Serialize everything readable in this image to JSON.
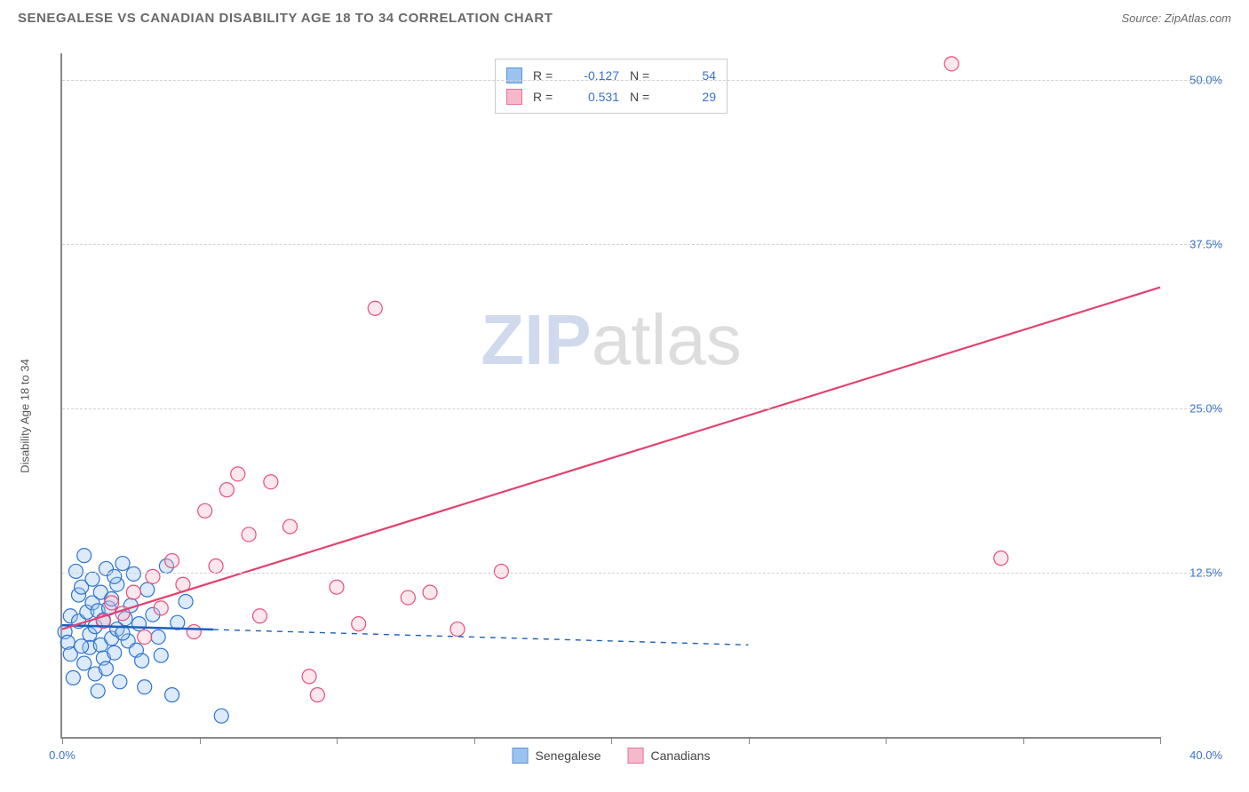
{
  "header": {
    "title": "SENEGALESE VS CANADIAN DISABILITY AGE 18 TO 34 CORRELATION CHART",
    "source": "Source: ZipAtlas.com"
  },
  "axes": {
    "y_label": "Disability Age 18 to 34",
    "xlim": [
      0,
      40
    ],
    "ylim": [
      0,
      52
    ],
    "x_ticks": [
      0,
      5,
      10,
      15,
      20,
      25,
      30,
      35,
      40
    ],
    "x_tick_labels": {
      "0": "0.0%"
    },
    "x_corner_label": "40.0%",
    "y_ticks": [
      12.5,
      25.0,
      37.5,
      50.0
    ],
    "y_tick_labels": [
      "12.5%",
      "25.0%",
      "37.5%",
      "50.0%"
    ],
    "grid_color": "#d0d0d0"
  },
  "series": {
    "senegalese": {
      "label": "Senegalese",
      "color_stroke": "#2f74d0",
      "color_fill": "#9cc2ef",
      "swatch_border": "#5a95da",
      "trend": {
        "slope": -0.06,
        "intercept": 8.5,
        "x_solid_end": 5.5,
        "x_dash_end": 25,
        "color": "#1c5fbf",
        "width": 2.5
      },
      "points": [
        [
          0.1,
          8.0
        ],
        [
          0.2,
          7.2
        ],
        [
          0.3,
          6.3
        ],
        [
          0.3,
          9.2
        ],
        [
          0.5,
          12.6
        ],
        [
          0.6,
          10.8
        ],
        [
          0.6,
          8.8
        ],
        [
          0.7,
          11.4
        ],
        [
          0.8,
          13.8
        ],
        [
          0.8,
          5.6
        ],
        [
          0.9,
          9.5
        ],
        [
          1.0,
          7.8
        ],
        [
          1.0,
          6.8
        ],
        [
          1.1,
          10.2
        ],
        [
          1.1,
          12.0
        ],
        [
          1.2,
          8.4
        ],
        [
          1.2,
          4.8
        ],
        [
          1.3,
          9.6
        ],
        [
          1.4,
          7.0
        ],
        [
          1.4,
          11.0
        ],
        [
          1.5,
          6.0
        ],
        [
          1.5,
          8.9
        ],
        [
          1.6,
          12.8
        ],
        [
          1.6,
          5.2
        ],
        [
          1.7,
          9.8
        ],
        [
          1.8,
          7.5
        ],
        [
          1.8,
          10.5
        ],
        [
          1.9,
          6.4
        ],
        [
          2.0,
          8.2
        ],
        [
          2.0,
          11.6
        ],
        [
          2.1,
          4.2
        ],
        [
          2.2,
          13.2
        ],
        [
          2.3,
          9.0
        ],
        [
          2.4,
          7.3
        ],
        [
          2.5,
          10.0
        ],
        [
          2.6,
          12.4
        ],
        [
          2.7,
          6.6
        ],
        [
          2.8,
          8.6
        ],
        [
          3.0,
          3.8
        ],
        [
          3.1,
          11.2
        ],
        [
          3.3,
          9.3
        ],
        [
          3.5,
          7.6
        ],
        [
          3.8,
          13.0
        ],
        [
          4.0,
          3.2
        ],
        [
          4.2,
          8.7
        ],
        [
          4.5,
          10.3
        ],
        [
          1.3,
          3.5
        ],
        [
          0.4,
          4.5
        ],
        [
          1.9,
          12.2
        ],
        [
          2.9,
          5.8
        ],
        [
          0.7,
          6.9
        ],
        [
          3.6,
          6.2
        ],
        [
          5.8,
          1.6
        ],
        [
          2.2,
          7.9
        ]
      ]
    },
    "canadians": {
      "label": "Canadians",
      "color_stroke": "#e84f7a",
      "color_fill": "#f6b9cb",
      "swatch_border": "#e87094",
      "trend": {
        "slope": 0.65,
        "intercept": 8.2,
        "x_solid_end": 40,
        "color": "#e3416e",
        "width": 2.2
      },
      "points": [
        [
          1.5,
          8.8
        ],
        [
          1.8,
          10.2
        ],
        [
          2.2,
          9.4
        ],
        [
          2.6,
          11.0
        ],
        [
          3.0,
          7.6
        ],
        [
          3.3,
          12.2
        ],
        [
          3.6,
          9.8
        ],
        [
          4.0,
          13.4
        ],
        [
          4.4,
          11.6
        ],
        [
          4.8,
          8.0
        ],
        [
          5.2,
          17.2
        ],
        [
          5.6,
          13.0
        ],
        [
          6.0,
          18.8
        ],
        [
          6.4,
          20.0
        ],
        [
          6.8,
          15.4
        ],
        [
          7.2,
          9.2
        ],
        [
          7.6,
          19.4
        ],
        [
          8.3,
          16.0
        ],
        [
          9.0,
          4.6
        ],
        [
          9.3,
          3.2
        ],
        [
          10.0,
          11.4
        ],
        [
          10.8,
          8.6
        ],
        [
          11.4,
          32.6
        ],
        [
          12.6,
          10.6
        ],
        [
          13.4,
          11.0
        ],
        [
          14.4,
          8.2
        ],
        [
          16.0,
          12.6
        ],
        [
          32.4,
          51.2
        ],
        [
          34.2,
          13.6
        ]
      ]
    }
  },
  "stats_legend": [
    {
      "swatch": "senegalese",
      "R": "-0.127",
      "N": "54"
    },
    {
      "swatch": "canadians",
      "R": "0.531",
      "N": "29"
    }
  ],
  "watermark": {
    "zip": "ZIP",
    "atlas": "atlas"
  },
  "style": {
    "marker_radius": 8,
    "background": "#ffffff"
  }
}
